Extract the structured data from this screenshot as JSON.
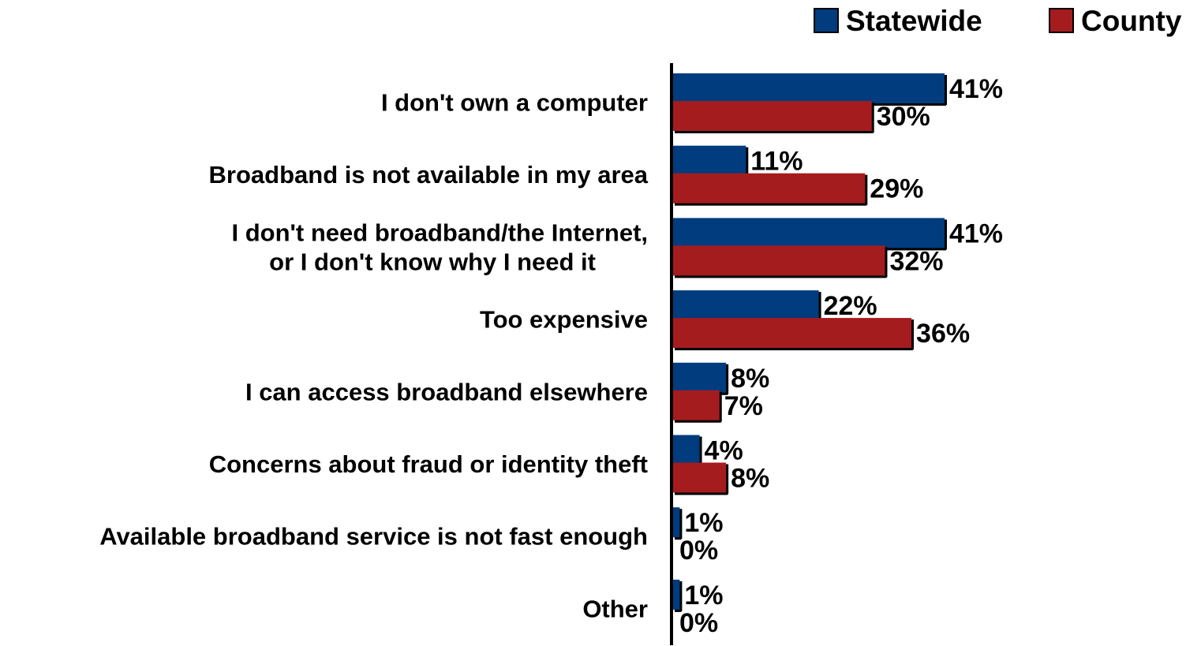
{
  "chart_data": {
    "type": "bar",
    "orientation": "horizontal",
    "categories": [
      [
        "I don't own a computer"
      ],
      [
        "Broadband is not available in my area"
      ],
      [
        "I don't need broadband/the Internet,",
        "or I don't know why I need it"
      ],
      [
        "Too expensive"
      ],
      [
        "I can access broadband elsewhere"
      ],
      [
        "Concerns about fraud or identity theft"
      ],
      [
        "Available broadband service is not fast enough"
      ],
      [
        "Other"
      ]
    ],
    "series": [
      {
        "name": "Statewide",
        "color": "#003C7E",
        "values": [
          41,
          11,
          41,
          22,
          8,
          4,
          1,
          1
        ],
        "labels": [
          "41%",
          "11%",
          "41%",
          "22%",
          "8%",
          "4%",
          "1%",
          "1%"
        ]
      },
      {
        "name": "County",
        "color": "#A51C1E",
        "values": [
          30,
          29,
          32,
          36,
          7,
          8,
          0,
          0
        ],
        "labels": [
          "30%",
          "29%",
          "32%",
          "36%",
          "7%",
          "8%",
          "0%",
          "0%"
        ]
      }
    ],
    "xlim": [
      0,
      41
    ],
    "grid": false,
    "legend": "top-right"
  }
}
